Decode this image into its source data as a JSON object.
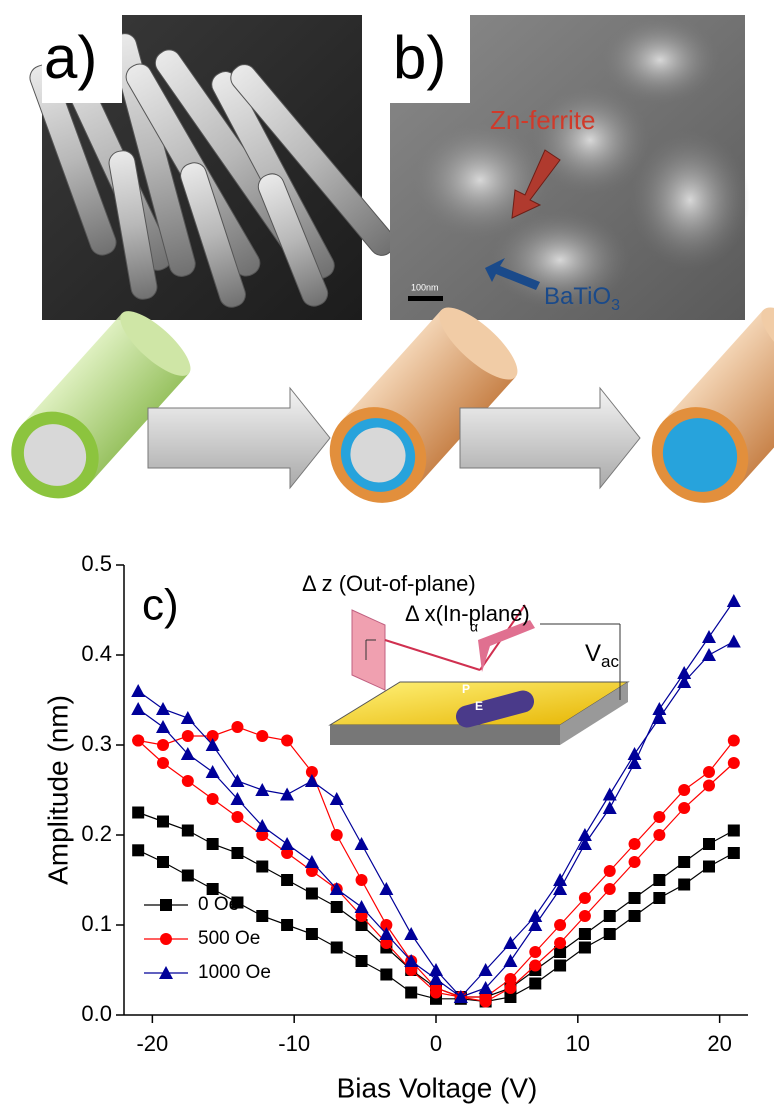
{
  "panels": {
    "a": {
      "label": "a)"
    },
    "b": {
      "label": "b)",
      "zn_ferrite": "Zn-ferrite",
      "scale_bar": "100nm",
      "batio3": {
        "text": "BaTiO",
        "sub": "3"
      }
    }
  },
  "chart_data": {
    "type": "line",
    "panel_label": "c)",
    "x_label": "Bias Voltage (V)",
    "y_label": "Amplitude (nm)",
    "x": [
      -21,
      -19.25,
      -17.5,
      -15.75,
      -14,
      -12.25,
      -10.5,
      -8.75,
      -7,
      -5.25,
      -3.5,
      -1.75,
      0,
      1.75,
      3.5,
      5.25,
      7,
      8.75,
      10.5,
      12.25,
      14,
      15.75,
      17.5,
      19.25,
      21
    ],
    "xlim": [
      -22,
      22
    ],
    "xticks": [
      -20,
      -10,
      0,
      10,
      20
    ],
    "ylim": [
      0,
      0.5
    ],
    "yticks": [
      {
        "value": 0,
        "label": "0.0"
      },
      0.1,
      0.2,
      0.3,
      0.4,
      0.5
    ],
    "legend": "lower left",
    "series": [
      {
        "name": "0 Oe",
        "color": "#000000",
        "marker": "square",
        "values": [
          [
            0.225,
            0.215,
            0.205,
            0.19,
            0.18,
            0.165,
            0.15,
            0.135,
            0.12,
            0.1,
            0.075,
            0.05,
            0.03,
            0.02,
            0.02,
            0.03,
            0.05,
            0.07,
            0.09,
            0.11,
            0.13,
            0.15,
            0.17,
            0.19,
            0.205
          ],
          [
            0.183,
            0.17,
            0.155,
            0.14,
            0.125,
            0.11,
            0.1,
            0.09,
            0.075,
            0.06,
            0.045,
            0.025,
            0.018,
            0.018,
            0.015,
            0.02,
            0.035,
            0.055,
            0.075,
            0.09,
            0.11,
            0.13,
            0.145,
            0.165,
            0.18
          ]
        ]
      },
      {
        "name": "500 Oe",
        "color": "#ff0000",
        "marker": "circle",
        "values": [
          [
            0.305,
            0.3,
            0.31,
            0.31,
            0.32,
            0.31,
            0.305,
            0.27,
            0.2,
            0.15,
            0.1,
            0.06,
            0.03,
            0.02,
            0.02,
            0.04,
            0.07,
            0.1,
            0.13,
            0.16,
            0.19,
            0.22,
            0.25,
            0.27,
            0.305
          ],
          [
            0.305,
            0.28,
            0.26,
            0.24,
            0.22,
            0.2,
            0.18,
            0.16,
            0.14,
            0.11,
            0.08,
            0.05,
            0.025,
            0.02,
            0.015,
            0.03,
            0.055,
            0.08,
            0.11,
            0.14,
            0.17,
            0.2,
            0.23,
            0.255,
            0.28
          ]
        ]
      },
      {
        "name": "1000 Oe",
        "color": "#000099",
        "marker": "triangle",
        "values": [
          [
            0.36,
            0.34,
            0.33,
            0.3,
            0.26,
            0.25,
            0.245,
            0.26,
            0.24,
            0.19,
            0.14,
            0.09,
            0.05,
            0.02,
            0.03,
            0.06,
            0.1,
            0.14,
            0.19,
            0.23,
            0.28,
            0.34,
            0.38,
            0.42,
            0.46
          ],
          [
            0.34,
            0.32,
            0.29,
            0.27,
            0.24,
            0.21,
            0.19,
            0.17,
            0.14,
            0.12,
            0.09,
            0.06,
            0.04,
            0.02,
            0.05,
            0.08,
            0.11,
            0.15,
            0.2,
            0.245,
            0.29,
            0.33,
            0.37,
            0.4,
            0.415
          ]
        ]
      }
    ],
    "inset": {
      "dz": "Δ z (Out-of-plane)",
      "dx": "Δ x(In-plane)",
      "alpha": "α",
      "vac": {
        "text": "V",
        "sub": "ac"
      },
      "p": "P",
      "e": "E"
    }
  }
}
